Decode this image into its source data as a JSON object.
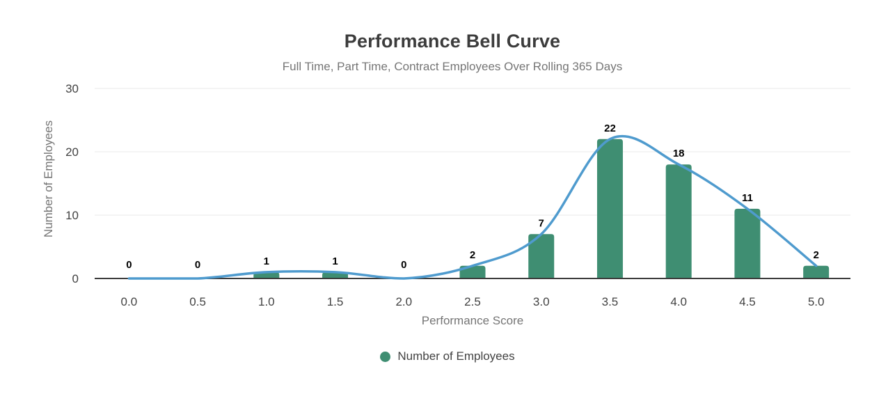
{
  "chart_data": {
    "type": "bar",
    "title": "Performance Bell Curve",
    "subtitle": "Full Time, Part Time, Contract Employees Over Rolling 365 Days",
    "xlabel": "Performance Score",
    "ylabel": "Number of Employees",
    "categories": [
      "0.0",
      "0.5",
      "1.0",
      "1.5",
      "2.0",
      "2.5",
      "3.0",
      "3.5",
      "4.0",
      "4.5",
      "5.0"
    ],
    "values": [
      0,
      0,
      1,
      1,
      0,
      2,
      7,
      22,
      18,
      11,
      2
    ],
    "value_labels": [
      "0",
      "0",
      "1",
      "1",
      "0",
      "2",
      "7",
      "22",
      "18",
      "11",
      "2"
    ],
    "ylim": [
      0,
      30
    ],
    "y_ticks": [
      0,
      10,
      20,
      30
    ],
    "grid": "horizontal",
    "overlay_line": {
      "type": "smooth-line",
      "values": [
        0,
        0,
        1,
        1,
        0,
        2,
        7,
        22,
        18,
        11,
        2
      ],
      "color": "#4f9bce"
    },
    "bar_color": "#3f8e72",
    "legend": {
      "position": "bottom",
      "marker": "circle",
      "items": [
        {
          "label": "Number of Employees",
          "color": "#3f8e72"
        }
      ]
    },
    "colors": {
      "title": "#3c3c3c",
      "subtitle": "#757575",
      "axis_titles": "#757575",
      "tick_labels": "#424242",
      "value_labels": "#000000",
      "gridline": "#e8e8e8",
      "baseline": "#3c3c3c",
      "background": "#ffffff"
    }
  }
}
